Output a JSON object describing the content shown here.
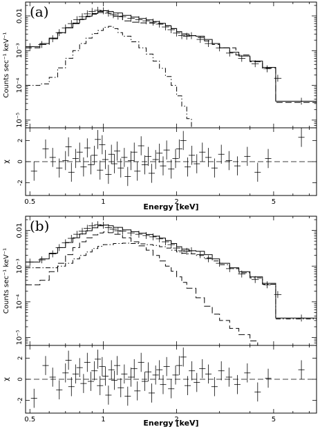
{
  "chart_data": [
    {
      "panel_label": "(a)",
      "type": "line",
      "xscale": "log",
      "yscale": "log",
      "xlabel": "Energy [keV]",
      "ylabel": "Counts sec⁻¹ keV⁻¹",
      "xlim": [
        0.48,
        7.5
      ],
      "ylim": [
        6e-06,
        0.025
      ],
      "x_tick_labels": [
        "0.5",
        "1",
        "2",
        "5"
      ],
      "x_ticks": [
        0.5,
        1,
        2,
        5
      ],
      "y_tick_labels": [
        "0.01",
        "10⁻³",
        "10⁻⁴",
        "10⁻⁵"
      ],
      "y_ticks": [
        0.01,
        0.001,
        0.0001,
        1e-05
      ],
      "series": [
        {
          "style": "data",
          "x": [
            0.5,
            0.56,
            0.62,
            0.66,
            0.7,
            0.74,
            0.78,
            0.82,
            0.86,
            0.9,
            0.95,
            1.0,
            1.05,
            1.1,
            1.15,
            1.2,
            1.3,
            1.4,
            1.5,
            1.6,
            1.7,
            1.8,
            1.9,
            2.0,
            2.1,
            2.2,
            2.3,
            2.5,
            2.7,
            3.0,
            3.3,
            3.7,
            4.2,
            4.7,
            5.2,
            6.5
          ],
          "y": [
            0.0013,
            0.0015,
            0.0022,
            0.0033,
            0.0045,
            0.006,
            0.0078,
            0.0095,
            0.0115,
            0.0135,
            0.0145,
            0.014,
            0.012,
            0.0108,
            0.0098,
            0.0095,
            0.0085,
            0.0078,
            0.0072,
            0.0066,
            0.0058,
            0.0048,
            0.004,
            0.0032,
            0.0027,
            0.0026,
            0.0027,
            0.0021,
            0.0016,
            0.0012,
            0.00085,
            0.0006,
            0.00042,
            0.0003,
            0.00016,
            3.5e-05
          ]
        },
        {
          "style": "solid",
          "x": [
            0.48,
            0.55,
            0.6,
            0.65,
            0.7,
            0.75,
            0.8,
            0.85,
            0.9,
            0.95,
            1.0,
            1.05,
            1.1,
            1.2,
            1.3,
            1.4,
            1.5,
            1.6,
            1.7,
            1.8,
            1.9,
            2.0,
            2.1,
            2.25,
            2.4,
            2.6,
            2.8,
            3.0,
            3.3,
            3.6,
            4.0,
            4.5,
            5.1,
            5.1,
            7.5
          ],
          "y": [
            0.0013,
            0.0016,
            0.0023,
            0.0033,
            0.0046,
            0.0062,
            0.008,
            0.0098,
            0.0118,
            0.0135,
            0.0142,
            0.0135,
            0.0122,
            0.0104,
            0.0092,
            0.0084,
            0.0077,
            0.0069,
            0.0061,
            0.0052,
            0.0043,
            0.0035,
            0.003,
            0.0027,
            0.0026,
            0.0021,
            0.0016,
            0.0012,
            0.0009,
            0.0007,
            0.0005,
            0.00033,
            0.00022,
            3.5e-05,
            3.5e-05
          ]
        },
        {
          "style": "dashed",
          "x": [
            0.48,
            0.55,
            0.6,
            0.65,
            0.7,
            0.75,
            0.8,
            0.85,
            0.9,
            0.95,
            1.0,
            1.05,
            1.1,
            1.2,
            1.3,
            1.4,
            1.5,
            1.6,
            1.7,
            1.8,
            1.9,
            2.0,
            2.1,
            2.2,
            2.4,
            2.6,
            2.8,
            3.0,
            3.5,
            4.0,
            4.5,
            5.1,
            5.1,
            7.5
          ],
          "y": [
            0.0012,
            0.0015,
            0.0022,
            0.0032,
            0.0045,
            0.006,
            0.0078,
            0.0095,
            0.0112,
            0.0125,
            0.013,
            0.0118,
            0.0098,
            0.0072,
            0.0066,
            0.0063,
            0.0062,
            0.0061,
            0.0058,
            0.0052,
            0.0043,
            0.0035,
            0.003,
            0.0027,
            0.0024,
            0.0019,
            0.0015,
            0.0012,
            0.00075,
            0.00048,
            0.00031,
            0.00021,
            3.2e-05,
            3.2e-05
          ]
        },
        {
          "style": "dotdash",
          "x": [
            0.48,
            0.55,
            0.6,
            0.65,
            0.7,
            0.75,
            0.8,
            0.85,
            0.9,
            0.95,
            1.0,
            1.05,
            1.1,
            1.15,
            1.2,
            1.3,
            1.4,
            1.5,
            1.6,
            1.7,
            1.8,
            1.9,
            2.0,
            2.1,
            2.2,
            2.3
          ],
          "y": [
            0.0001,
            0.00011,
            0.00017,
            0.00032,
            0.0006,
            0.001,
            0.0016,
            0.0023,
            0.0031,
            0.0038,
            0.0047,
            0.005,
            0.0043,
            0.0033,
            0.0026,
            0.0018,
            0.0012,
            0.0008,
            0.0005,
            0.00031,
            0.00018,
            0.0001,
            5e-05,
            2.5e-05,
            1.1e-05,
            6e-06
          ]
        }
      ],
      "residuals": {
        "ylabel": "χ",
        "ylim": [
          -3.2,
          3.2
        ],
        "y_tick_labels": [
          "2",
          "0",
          "-2"
        ],
        "y_ticks": [
          2,
          0,
          -2
        ],
        "x": [
          0.52,
          0.58,
          0.62,
          0.66,
          0.7,
          0.72,
          0.74,
          0.77,
          0.8,
          0.83,
          0.86,
          0.89,
          0.92,
          0.95,
          0.97,
          0.99,
          1.02,
          1.05,
          1.08,
          1.11,
          1.14,
          1.18,
          1.22,
          1.26,
          1.3,
          1.34,
          1.38,
          1.43,
          1.48,
          1.53,
          1.58,
          1.64,
          1.7,
          1.76,
          1.82,
          1.9,
          1.98,
          2.05,
          2.13,
          2.22,
          2.31,
          2.42,
          2.55,
          2.7,
          2.86,
          3.05,
          3.28,
          3.55,
          3.9,
          4.3,
          4.75,
          6.5
        ],
        "y": [
          -0.9,
          1.2,
          0.4,
          -0.6,
          0.1,
          1.4,
          -1.0,
          0.3,
          0.9,
          -0.5,
          1.3,
          -0.3,
          0.6,
          2.1,
          -0.8,
          1.6,
          0.2,
          -1.2,
          0.7,
          -0.2,
          1.0,
          -0.6,
          0.4,
          -1.4,
          0.1,
          0.9,
          -0.9,
          1.5,
          -0.3,
          0.5,
          -1.1,
          0.2,
          0.8,
          -0.4,
          1.1,
          -0.7,
          0.3,
          1.2,
          2.0,
          -0.5,
          0.6,
          -0.2,
          0.9,
          0.4,
          -0.6,
          0.7,
          0.1,
          -0.4,
          0.5,
          -1.0,
          0.3,
          2.3
        ],
        "err": [
          0.9,
          0.9,
          0.9,
          0.9,
          0.9,
          0.9,
          0.9,
          0.9,
          0.9,
          0.9,
          0.9,
          0.9,
          0.9,
          0.9,
          0.9,
          0.9,
          0.9,
          0.9,
          0.9,
          0.9,
          0.9,
          0.9,
          0.9,
          0.9,
          0.9,
          0.9,
          0.9,
          0.9,
          0.9,
          0.9,
          0.9,
          0.9,
          0.9,
          0.9,
          0.9,
          0.9,
          0.9,
          0.9,
          0.9,
          0.9,
          0.9,
          0.9,
          0.9,
          0.9,
          0.9,
          0.9,
          0.9,
          0.9,
          0.9,
          0.9,
          0.9,
          0.9
        ]
      }
    },
    {
      "panel_label": "(b)",
      "type": "line",
      "xscale": "log",
      "yscale": "log",
      "xlabel": "Energy [keV]",
      "ylabel": "Counts sec⁻¹ keV⁻¹",
      "xlim": [
        0.48,
        7.5
      ],
      "ylim": [
        6e-06,
        0.025
      ],
      "x_tick_labels": [
        "0.5",
        "1",
        "2",
        "5"
      ],
      "x_ticks": [
        0.5,
        1,
        2,
        5
      ],
      "y_tick_labels": [
        "0.01",
        "10⁻³",
        "10⁻⁴",
        "10⁻⁵"
      ],
      "y_ticks": [
        0.01,
        0.001,
        0.0001,
        1e-05
      ],
      "series": [
        {
          "style": "data",
          "x": [
            0.5,
            0.56,
            0.62,
            0.66,
            0.7,
            0.74,
            0.78,
            0.82,
            0.86,
            0.9,
            0.95,
            1.0,
            1.05,
            1.1,
            1.15,
            1.2,
            1.3,
            1.4,
            1.5,
            1.6,
            1.7,
            1.8,
            1.9,
            2.0,
            2.1,
            2.2,
            2.3,
            2.5,
            2.7,
            3.0,
            3.3,
            3.7,
            4.2,
            4.7,
            5.2,
            6.5
          ],
          "y": [
            0.0013,
            0.0015,
            0.0022,
            0.0033,
            0.0045,
            0.006,
            0.0078,
            0.0095,
            0.0115,
            0.0135,
            0.0145,
            0.014,
            0.012,
            0.0108,
            0.0098,
            0.0095,
            0.0085,
            0.0078,
            0.0072,
            0.0066,
            0.0058,
            0.0048,
            0.004,
            0.0032,
            0.0027,
            0.0026,
            0.0027,
            0.0021,
            0.0016,
            0.0012,
            0.00085,
            0.0006,
            0.00042,
            0.0003,
            0.00016,
            3.5e-05
          ]
        },
        {
          "style": "solid",
          "x": [
            0.48,
            0.55,
            0.6,
            0.65,
            0.7,
            0.75,
            0.8,
            0.85,
            0.9,
            0.95,
            1.0,
            1.05,
            1.1,
            1.2,
            1.3,
            1.4,
            1.5,
            1.6,
            1.7,
            1.8,
            1.9,
            2.0,
            2.1,
            2.25,
            2.4,
            2.6,
            2.8,
            3.0,
            3.3,
            3.6,
            4.0,
            4.5,
            5.1,
            5.1,
            7.5
          ],
          "y": [
            0.0013,
            0.0016,
            0.0023,
            0.0033,
            0.0046,
            0.0062,
            0.008,
            0.0098,
            0.0118,
            0.0135,
            0.0142,
            0.0135,
            0.0122,
            0.0104,
            0.0092,
            0.0084,
            0.0077,
            0.0069,
            0.0061,
            0.0052,
            0.0043,
            0.0035,
            0.003,
            0.0027,
            0.0026,
            0.0021,
            0.0016,
            0.0012,
            0.0009,
            0.0007,
            0.0005,
            0.00033,
            0.00022,
            3.5e-05,
            3.5e-05
          ]
        },
        {
          "style": "dashed",
          "x": [
            0.48,
            0.55,
            0.6,
            0.65,
            0.7,
            0.75,
            0.8,
            0.85,
            0.9,
            0.95,
            1.0,
            1.05,
            1.1,
            1.2,
            1.3,
            1.4,
            1.5,
            1.6,
            1.7,
            1.8,
            1.9,
            2.0,
            2.1,
            2.2,
            2.4,
            2.6,
            2.8,
            3.0,
            3.3,
            3.6,
            4.0,
            4.3
          ],
          "y": [
            0.0003,
            0.0004,
            0.0007,
            0.0012,
            0.0021,
            0.0033,
            0.0048,
            0.0062,
            0.0075,
            0.0085,
            0.009,
            0.0086,
            0.0078,
            0.0062,
            0.0048,
            0.0037,
            0.0028,
            0.002,
            0.0014,
            0.001,
            0.00072,
            0.0005,
            0.00035,
            0.00024,
            0.00013,
            7.5e-05,
            4.5e-05,
            3e-05,
            1.8e-05,
            1.2e-05,
            8e-06,
            6e-06
          ]
        },
        {
          "style": "dotdash",
          "x": [
            0.48,
            0.55,
            0.6,
            0.65,
            0.7,
            0.75,
            0.8,
            0.85,
            0.9,
            0.95,
            1.0,
            1.1,
            1.2,
            1.3,
            1.4,
            1.5,
            1.6,
            1.7,
            1.8,
            1.9,
            2.0,
            2.1,
            2.2,
            2.4,
            2.6,
            2.8,
            3.0,
            3.3,
            3.6,
            4.0,
            4.5,
            5.1,
            5.1,
            7.5
          ],
          "y": [
            0.0009,
            0.0009,
            0.0009,
            0.001,
            0.0012,
            0.0016,
            0.002,
            0.0025,
            0.0031,
            0.0036,
            0.004,
            0.0043,
            0.0044,
            0.0043,
            0.0042,
            0.004,
            0.0038,
            0.0035,
            0.0032,
            0.0028,
            0.0025,
            0.0023,
            0.0022,
            0.002,
            0.0017,
            0.0014,
            0.0011,
            0.00085,
            0.00065,
            0.00047,
            0.00031,
            0.0002,
            3.3e-05,
            3.3e-05
          ]
        }
      ],
      "residuals": {
        "ylabel": "χ",
        "ylim": [
          -3.2,
          3.2
        ],
        "y_tick_labels": [
          "2",
          "0",
          "-2"
        ],
        "y_ticks": [
          2,
          0,
          -2
        ],
        "x": [
          0.52,
          0.58,
          0.62,
          0.66,
          0.7,
          0.72,
          0.74,
          0.77,
          0.8,
          0.83,
          0.86,
          0.89,
          0.92,
          0.95,
          0.97,
          0.99,
          1.02,
          1.05,
          1.08,
          1.11,
          1.14,
          1.18,
          1.22,
          1.26,
          1.3,
          1.34,
          1.38,
          1.43,
          1.48,
          1.53,
          1.58,
          1.64,
          1.7,
          1.76,
          1.82,
          1.9,
          1.98,
          2.05,
          2.13,
          2.22,
          2.31,
          2.42,
          2.55,
          2.7,
          2.86,
          3.05,
          3.28,
          3.55,
          3.9,
          4.3,
          4.75,
          6.5
        ],
        "y": [
          -1.8,
          1.3,
          0.2,
          -1.0,
          0.6,
          1.8,
          -0.7,
          0.5,
          1.1,
          -0.4,
          1.6,
          -0.2,
          0.8,
          1.9,
          -0.6,
          1.2,
          0.3,
          -1.5,
          0.9,
          -0.1,
          1.3,
          -0.8,
          0.5,
          -1.6,
          0.2,
          1.0,
          -1.1,
          1.6,
          -0.2,
          0.7,
          -1.3,
          0.4,
          0.9,
          -0.5,
          1.2,
          -0.9,
          0.4,
          1.3,
          2.1,
          -0.6,
          0.8,
          -0.3,
          1.0,
          0.5,
          -0.7,
          0.8,
          0.2,
          -0.5,
          0.6,
          -1.2,
          0.1,
          0.9
        ],
        "err": [
          0.9,
          0.9,
          0.9,
          0.9,
          0.9,
          0.9,
          0.9,
          0.9,
          0.9,
          0.9,
          0.9,
          0.9,
          0.9,
          0.9,
          0.9,
          0.9,
          0.9,
          0.9,
          0.9,
          0.9,
          0.9,
          0.9,
          0.9,
          0.9,
          0.9,
          0.9,
          0.9,
          0.9,
          0.9,
          0.9,
          0.9,
          0.9,
          0.9,
          0.9,
          0.9,
          0.9,
          0.9,
          0.9,
          0.9,
          0.9,
          0.9,
          0.9,
          0.9,
          0.9,
          0.9,
          0.9,
          0.9,
          0.9,
          0.9,
          0.9,
          0.9,
          0.9
        ]
      }
    }
  ]
}
